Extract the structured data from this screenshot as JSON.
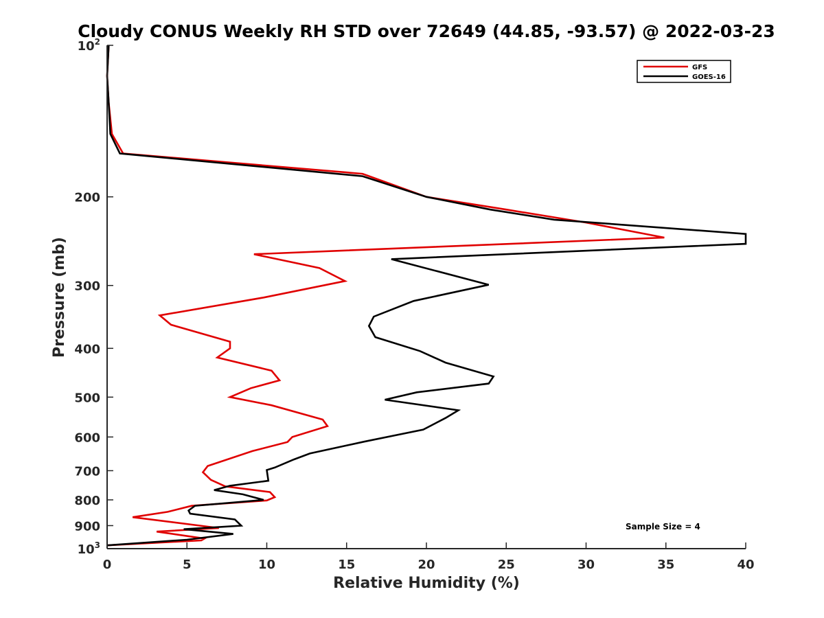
{
  "chart_data": {
    "type": "line",
    "title": "Cloudy CONUS Weekly RH STD over 72649 (44.85, -93.57) @ 2022-03-23",
    "xlabel": "Relative Humidity (%)",
    "ylabel": "Pressure (mb)",
    "xlim": [
      0,
      40
    ],
    "ylim": [
      100,
      1000
    ],
    "y_scale": "log",
    "y_reversed": true,
    "x_ticks": [
      0,
      5,
      10,
      15,
      20,
      25,
      30,
      35,
      40
    ],
    "y_ticks": [
      {
        "value": 100,
        "label": "10",
        "sup": "2"
      },
      {
        "value": 200,
        "label": "200"
      },
      {
        "value": 300,
        "label": "300"
      },
      {
        "value": 400,
        "label": "400"
      },
      {
        "value": 500,
        "label": "500"
      },
      {
        "value": 600,
        "label": "600"
      },
      {
        "value": 700,
        "label": "700"
      },
      {
        "value": 800,
        "label": "800"
      },
      {
        "value": 900,
        "label": "900"
      },
      {
        "value": 1000,
        "label": "10",
        "sup": "3"
      }
    ],
    "grid": false,
    "legend_position": "top-right",
    "annotation": "Sample Size = 4",
    "series": [
      {
        "name": "GFS",
        "color": "#e00000",
        "points": [
          [
            0.1,
            100
          ],
          [
            0.0,
            115
          ],
          [
            0.1,
            130
          ],
          [
            0.3,
            150
          ],
          [
            1.0,
            164
          ],
          [
            16.0,
            180
          ],
          [
            20.0,
            200
          ],
          [
            25.0,
            212
          ],
          [
            30.0,
            225
          ],
          [
            34.9,
            241
          ],
          [
            9.2,
            260
          ],
          [
            13.3,
            277
          ],
          [
            14.9,
            294
          ],
          [
            9.8,
            317
          ],
          [
            3.3,
            344
          ],
          [
            4.0,
            359
          ],
          [
            7.7,
            388
          ],
          [
            7.7,
            400
          ],
          [
            6.9,
            417
          ],
          [
            10.3,
            443
          ],
          [
            10.8,
            463
          ],
          [
            9.0,
            480
          ],
          [
            7.7,
            500
          ],
          [
            10.3,
            519
          ],
          [
            13.5,
            554
          ],
          [
            13.8,
            571
          ],
          [
            11.6,
            600
          ],
          [
            11.3,
            614
          ],
          [
            9.1,
            640
          ],
          [
            6.3,
            685
          ],
          [
            6.0,
            705
          ],
          [
            6.5,
            730
          ],
          [
            7.4,
            752
          ],
          [
            10.2,
            772
          ],
          [
            10.5,
            790
          ],
          [
            10.0,
            802
          ],
          [
            5.3,
            822
          ],
          [
            3.8,
            845
          ],
          [
            1.6,
            866
          ],
          [
            7.0,
            910
          ],
          [
            3.1,
            925
          ],
          [
            6.1,
            955
          ],
          [
            5.9,
            963
          ],
          [
            0.0,
            985
          ]
        ]
      },
      {
        "name": "GOES-16",
        "color": "#000000",
        "points": [
          [
            0.1,
            100
          ],
          [
            0.0,
            115
          ],
          [
            0.1,
            130
          ],
          [
            0.2,
            150
          ],
          [
            0.8,
            164
          ],
          [
            16.0,
            182
          ],
          [
            20.0,
            200
          ],
          [
            24.0,
            212
          ],
          [
            28.0,
            222
          ],
          [
            40.0,
            237
          ],
          [
            40.0,
            248
          ],
          [
            17.8,
            266
          ],
          [
            23.9,
            299
          ],
          [
            19.2,
            322
          ],
          [
            16.7,
            346
          ],
          [
            16.4,
            361
          ],
          [
            16.8,
            380
          ],
          [
            19.6,
            405
          ],
          [
            21.2,
            427
          ],
          [
            24.2,
            455
          ],
          [
            23.9,
            470
          ],
          [
            19.4,
            489
          ],
          [
            17.4,
            506
          ],
          [
            22.0,
            531
          ],
          [
            21.2,
            550
          ],
          [
            19.8,
            580
          ],
          [
            16.1,
            613
          ],
          [
            12.7,
            647
          ],
          [
            11.7,
            665
          ],
          [
            10.5,
            690
          ],
          [
            10.0,
            698
          ],
          [
            10.1,
            733
          ],
          [
            7.7,
            750
          ],
          [
            6.7,
            765
          ],
          [
            8.5,
            780
          ],
          [
            9.8,
            800
          ],
          [
            5.5,
            822
          ],
          [
            5.1,
            840
          ],
          [
            5.2,
            852
          ],
          [
            8.0,
            875
          ],
          [
            8.4,
            900
          ],
          [
            4.8,
            915
          ],
          [
            7.9,
            935
          ],
          [
            5.0,
            960
          ],
          [
            0.0,
            985
          ]
        ]
      }
    ]
  }
}
